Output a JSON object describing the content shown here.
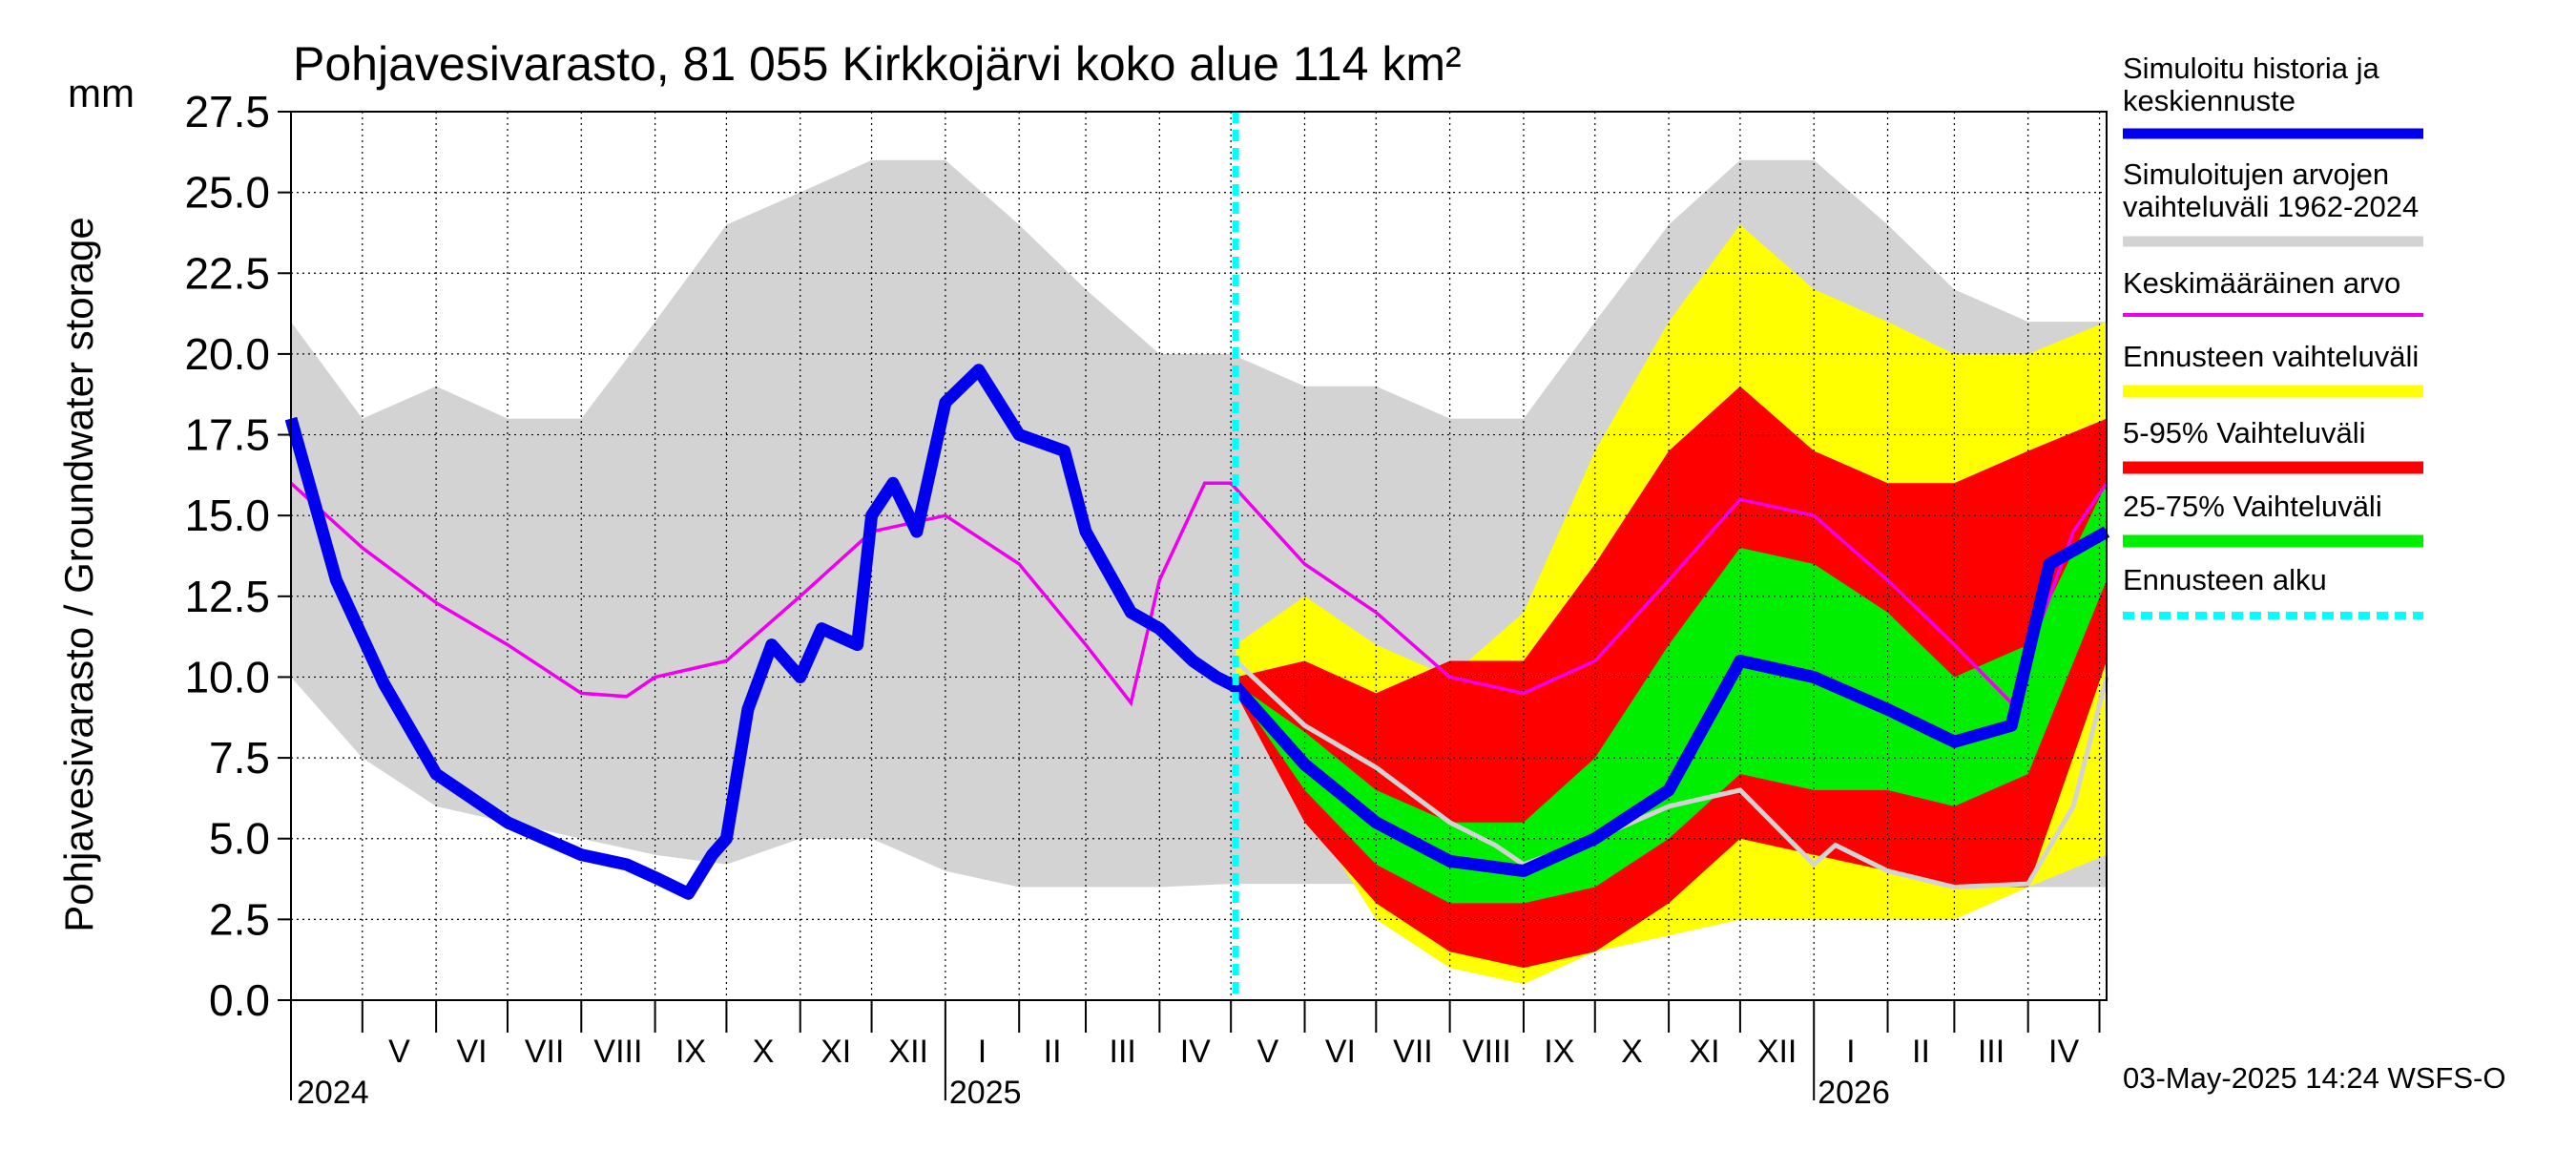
{
  "chart_data": {
    "type": "area",
    "title": "Pohjavesivarasto, 81 055 Kirkkojärvi koko alue 114 km²",
    "ylabel": "Pohjavesivarasto / Groundwater storage",
    "yunit": "mm",
    "ylim": [
      0,
      27.5
    ],
    "yticks": [
      "0.0",
      "2.5",
      "5.0",
      "7.5",
      "10.0",
      "12.5",
      "15.0",
      "17.5",
      "20.0",
      "22.5",
      "25.0",
      "27.5"
    ],
    "xlim": [
      "2024-04-01",
      "2026-05-04"
    ],
    "months": [
      "V",
      "VI",
      "VII",
      "VIII",
      "IX",
      "X",
      "XI",
      "XII",
      "I",
      "II",
      "III",
      "IV",
      "V",
      "VI",
      "VII",
      "VIII",
      "IX",
      "X",
      "XI",
      "XII",
      "I",
      "II",
      "III",
      "IV"
    ],
    "years": [
      "2024",
      "2025",
      "2026"
    ],
    "forecast_start": "2025-05-03",
    "grid": true,
    "legend_position": "right",
    "footer": "03-May-2025 14:24 WSFS-O",
    "legend": [
      {
        "label": "Simuloitu historia ja keskiennuste",
        "color": "#0000ee"
      },
      {
        "label": "Simuloitujen arvojen vaihteluväli 1962-2024",
        "color": "#d3d3d3"
      },
      {
        "label": "Keskimääräinen arvo",
        "color": "#ee00ee"
      },
      {
        "label": "Ennusteen vaihteluväli",
        "color": "#ffff00"
      },
      {
        "label": "5-95% Vaihteluväli",
        "color": "#ff0000"
      },
      {
        "label": "25-75% Vaihteluväli",
        "color": "#00ee00"
      },
      {
        "label": "Ennusteen alku",
        "color": "#00ffff"
      }
    ],
    "series": {
      "hist_range": {
        "x": [
          "2024-04-01",
          "2024-05-01",
          "2024-06-01",
          "2024-07-01",
          "2024-08-01",
          "2024-09-01",
          "2024-10-01",
          "2024-11-01",
          "2024-12-01",
          "2025-01-01",
          "2025-02-01",
          "2025-03-01",
          "2025-04-01",
          "2025-05-01",
          "2025-06-01",
          "2025-07-01",
          "2025-08-01",
          "2025-09-01",
          "2025-10-01",
          "2025-11-01",
          "2025-12-01",
          "2026-01-01",
          "2026-02-01",
          "2026-03-01",
          "2026-04-01",
          "2026-05-04"
        ],
        "low": [
          10,
          7.5,
          6,
          5.5,
          5,
          4.5,
          4.2,
          5,
          5,
          4,
          3.5,
          3.5,
          3.5,
          3.6,
          3.6,
          3.6,
          3.5,
          3.5,
          3.5,
          3.5,
          3.5,
          3.5,
          3.5,
          3.5,
          3.5,
          3.5
        ],
        "high": [
          21,
          18,
          19,
          18,
          18,
          21,
          24,
          25,
          26,
          26,
          24,
          22,
          20,
          20,
          19,
          19,
          18,
          18,
          21,
          24,
          26,
          26,
          24,
          22,
          21,
          21
        ]
      },
      "mean": {
        "x": [
          "2024-04-01",
          "2024-05-01",
          "2024-06-01",
          "2024-07-01",
          "2024-08-01",
          "2024-08-20",
          "2024-09-01",
          "2024-10-01",
          "2024-11-01",
          "2024-12-01",
          "2025-01-01",
          "2025-02-01",
          "2025-03-01",
          "2025-03-20",
          "2025-04-01",
          "2025-04-20",
          "2025-05-01",
          "2025-06-01",
          "2025-07-01",
          "2025-08-01",
          "2025-09-01",
          "2025-10-01",
          "2025-11-01",
          "2025-12-01",
          "2026-01-01",
          "2026-02-01",
          "2026-03-01",
          "2026-03-25",
          "2026-04-20",
          "2026-05-04"
        ],
        "y": [
          16,
          14,
          12.3,
          11,
          9.5,
          9.4,
          10,
          10.5,
          12.5,
          14.5,
          15,
          13.5,
          11,
          9.2,
          13,
          16,
          16,
          13.5,
          12,
          10,
          9.5,
          10.5,
          13,
          15.5,
          15,
          13,
          11,
          9.2,
          14.5,
          16
        ]
      },
      "history": {
        "x": [
          "2024-04-01",
          "2024-04-20",
          "2024-05-10",
          "2024-06-01",
          "2024-07-01",
          "2024-08-01",
          "2024-08-20",
          "2024-09-01",
          "2024-09-15",
          "2024-09-25",
          "2024-10-01",
          "2024-10-10",
          "2024-10-20",
          "2024-11-01",
          "2024-11-10",
          "2024-11-25",
          "2024-12-01",
          "2024-12-10",
          "2024-12-20",
          "2025-01-01",
          "2025-01-15",
          "2025-02-01",
          "2025-02-20",
          "2025-03-01",
          "2025-03-20",
          "2025-04-01",
          "2025-04-15",
          "2025-04-25",
          "2025-05-03"
        ],
        "y": [
          18,
          13,
          9.8,
          7,
          5.5,
          4.5,
          4.2,
          3.8,
          3.3,
          4.5,
          5,
          9,
          11,
          10,
          11.5,
          11,
          15,
          16,
          14.5,
          18.5,
          19.5,
          17.5,
          17,
          14.5,
          12,
          11.5,
          10.5,
          10,
          9.7
        ]
      },
      "forecast_median": {
        "x": [
          "2025-05-03",
          "2025-06-01",
          "2025-07-01",
          "2025-08-01",
          "2025-09-01",
          "2025-10-01",
          "2025-11-01",
          "2025-12-01",
          "2026-01-01",
          "2026-02-01",
          "2026-03-01",
          "2026-03-25",
          "2026-04-10",
          "2026-05-04"
        ],
        "y": [
          9.7,
          7.3,
          5.5,
          4.3,
          4,
          5,
          6.5,
          10.5,
          10,
          9,
          8,
          8.5,
          13.5,
          14.5
        ]
      },
      "forecast_range": {
        "x": [
          "2025-05-03",
          "2025-06-01",
          "2025-07-01",
          "2025-08-01",
          "2025-09-01",
          "2025-10-01",
          "2025-11-01",
          "2025-12-01",
          "2026-01-01",
          "2026-02-01",
          "2026-03-01",
          "2026-04-01",
          "2026-05-04"
        ],
        "low": [
          9.5,
          6,
          2.5,
          1,
          0.5,
          1.5,
          2,
          2.5,
          2.5,
          2.5,
          2.5,
          3.5,
          4.5
        ],
        "high": [
          11,
          12.5,
          11,
          10,
          12,
          17,
          21,
          24,
          22,
          21,
          20,
          20,
          21
        ]
      },
      "forecast_p5_95": {
        "x": [
          "2025-05-03",
          "2025-06-01",
          "2025-07-01",
          "2025-08-01",
          "2025-09-01",
          "2025-10-01",
          "2025-11-01",
          "2025-12-01",
          "2026-01-01",
          "2026-02-01",
          "2026-03-01",
          "2026-04-01",
          "2026-05-04"
        ],
        "low": [
          9.5,
          5.5,
          3,
          1.5,
          1,
          1.5,
          3,
          5,
          4.5,
          4,
          3.5,
          3.5,
          10.5
        ],
        "high": [
          10,
          10.5,
          9.5,
          10.5,
          10.5,
          13.5,
          17,
          19,
          17,
          16,
          16,
          17,
          18
        ]
      },
      "forecast_p25_75": {
        "x": [
          "2025-05-03",
          "2025-06-01",
          "2025-07-01",
          "2025-08-01",
          "2025-09-01",
          "2025-10-01",
          "2025-11-01",
          "2025-12-01",
          "2026-01-01",
          "2026-02-01",
          "2026-03-01",
          "2026-04-01",
          "2026-05-04"
        ],
        "low": [
          9.6,
          6.5,
          4.2,
          3,
          3,
          3.5,
          5,
          7,
          6.5,
          6.5,
          6,
          7,
          13
        ],
        "high": [
          9.8,
          8.3,
          6.5,
          5.5,
          5.5,
          7.5,
          11,
          14,
          13.5,
          12,
          10,
          11,
          16
        ]
      },
      "previous_year": {
        "x": [
          "2025-05-03",
          "2025-06-01",
          "2025-07-01",
          "2025-08-01",
          "2025-08-20",
          "2025-09-01",
          "2025-10-01",
          "2025-11-01",
          "2025-12-01",
          "2026-01-01",
          "2026-01-10",
          "2026-02-01",
          "2026-03-01",
          "2026-04-01",
          "2026-04-20",
          "2026-05-04"
        ],
        "y": [
          10.5,
          8.5,
          7.2,
          5.5,
          4.8,
          4.2,
          5,
          6,
          6.5,
          4.2,
          4.8,
          4,
          3.5,
          3.6,
          6,
          10
        ]
      }
    }
  }
}
